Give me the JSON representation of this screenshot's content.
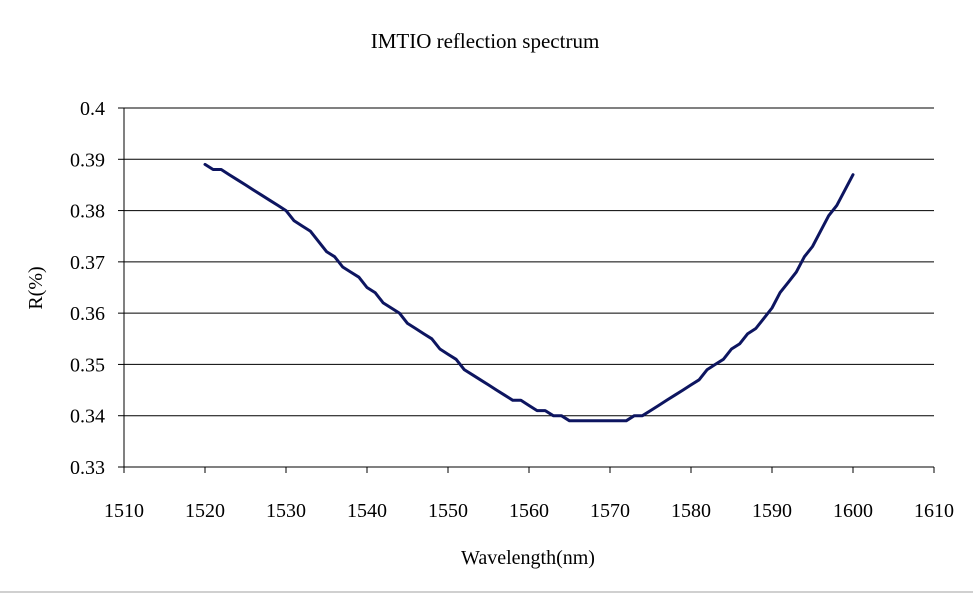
{
  "chart_data": {
    "type": "line",
    "title": "IMTIO reflection spectrum",
    "xlabel": "Wavelength(nm)",
    "ylabel": "R(%)",
    "xlim": [
      1510,
      1610
    ],
    "ylim": [
      0.33,
      0.4
    ],
    "xticks": [
      "1510",
      "1520",
      "1530",
      "1540",
      "1550",
      "1560",
      "1570",
      "1580",
      "1590",
      "1600",
      "1610"
    ],
    "yticks": [
      "0.33",
      "0.34",
      "0.35",
      "0.36",
      "0.37",
      "0.38",
      "0.39",
      "0.4"
    ],
    "grid": "horizontal",
    "series_color": "#0d1560",
    "series": [
      {
        "x": [
          1520,
          1521,
          1522,
          1523,
          1524,
          1525,
          1526,
          1527,
          1528,
          1529,
          1530,
          1531,
          1532,
          1533,
          1534,
          1535,
          1536,
          1537,
          1538,
          1539,
          1540,
          1541,
          1542,
          1543,
          1544,
          1545,
          1546,
          1547,
          1548,
          1549,
          1550,
          1551,
          1552,
          1553,
          1554,
          1555,
          1556,
          1557,
          1558,
          1559,
          1560,
          1561,
          1562,
          1563,
          1564,
          1565,
          1566,
          1567,
          1568,
          1569,
          1570,
          1571,
          1572,
          1573,
          1574,
          1575,
          1576,
          1577,
          1578,
          1579,
          1580,
          1581,
          1582,
          1583,
          1584,
          1585,
          1586,
          1587,
          1588,
          1589,
          1590,
          1591,
          1592,
          1593,
          1594,
          1595,
          1596,
          1597,
          1598,
          1599,
          1600
        ],
        "y": [
          0.389,
          0.388,
          0.388,
          0.387,
          0.386,
          0.385,
          0.384,
          0.383,
          0.382,
          0.381,
          0.38,
          0.378,
          0.377,
          0.376,
          0.374,
          0.372,
          0.371,
          0.369,
          0.368,
          0.367,
          0.365,
          0.364,
          0.362,
          0.361,
          0.36,
          0.358,
          0.357,
          0.356,
          0.355,
          0.353,
          0.352,
          0.351,
          0.349,
          0.348,
          0.347,
          0.346,
          0.345,
          0.344,
          0.343,
          0.343,
          0.342,
          0.341,
          0.341,
          0.34,
          0.34,
          0.339,
          0.339,
          0.339,
          0.339,
          0.339,
          0.339,
          0.339,
          0.339,
          0.34,
          0.34,
          0.341,
          0.342,
          0.343,
          0.344,
          0.345,
          0.346,
          0.347,
          0.349,
          0.35,
          0.351,
          0.353,
          0.354,
          0.356,
          0.357,
          0.359,
          0.361,
          0.364,
          0.366,
          0.368,
          0.371,
          0.373,
          0.376,
          0.379,
          0.381,
          0.384,
          0.387
        ]
      }
    ]
  }
}
